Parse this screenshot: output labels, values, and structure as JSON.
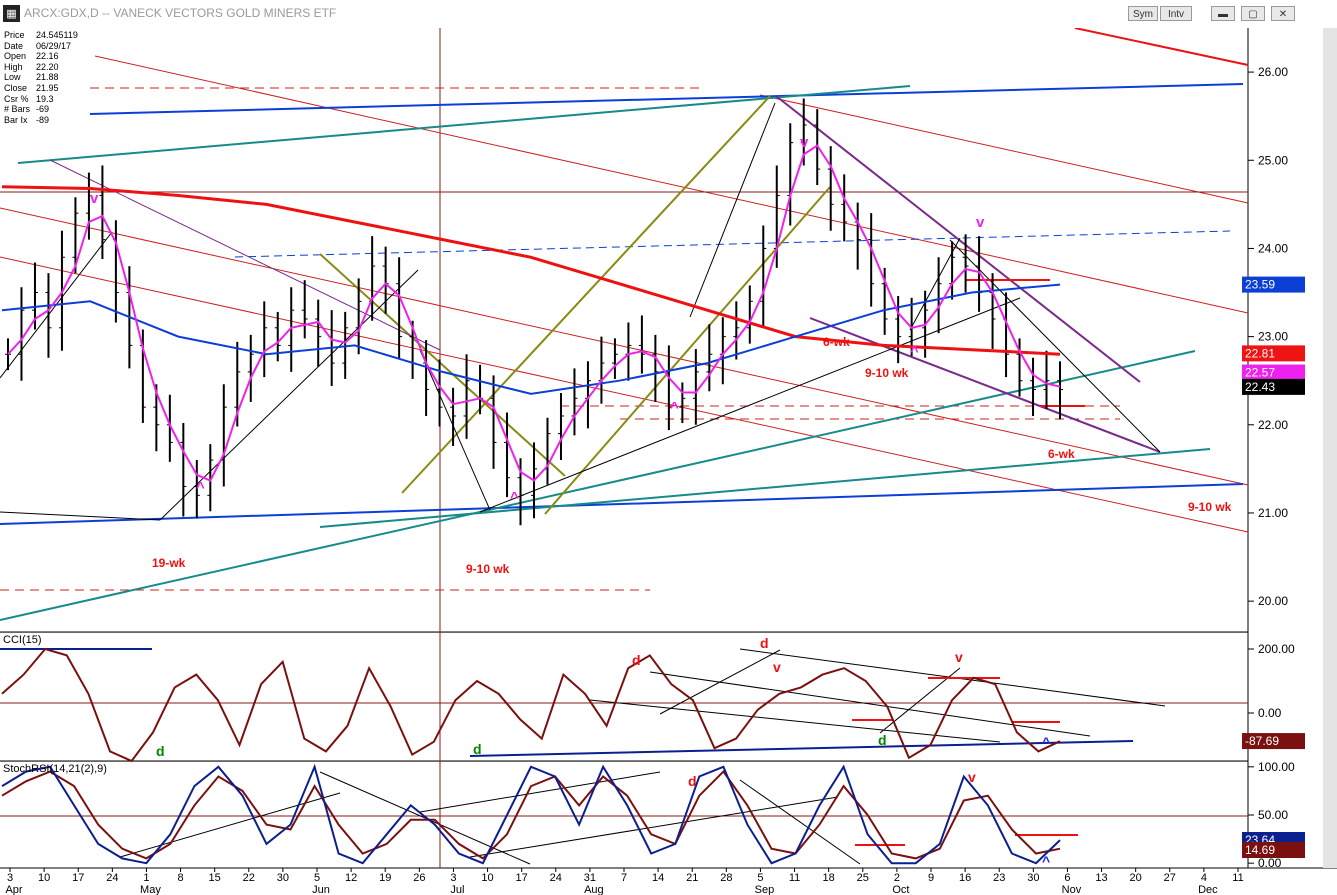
{
  "window": {
    "title": "ARCX:GDX,D -- VANECK VECTORS GOLD MINERS ETF",
    "sym_label": "Sym",
    "int_label": "Intv",
    "min_label": "▬",
    "max_label": "▢",
    "close_label": "✕",
    "app_icon": "grid-icon"
  },
  "info": {
    "price_label": "Price",
    "price": "24.545119",
    "date_label": "Date",
    "date": "06/29/17",
    "open_label": "Open",
    "open": "22.16",
    "high_label": "High",
    "high": "22.20",
    "low_label": "Low",
    "low": "21.88",
    "close_label": "Close",
    "close": "21.95",
    "csr_label": "Csr %",
    "csr": "19.3",
    "bars_label": "# Bars",
    "bars": "-69",
    "barix_label": "Bar Ix",
    "barix": "-89"
  },
  "panels": {
    "cci_title": "CCI(15)",
    "stoch_title": "StochRSI(14,21(2),9)"
  },
  "chart_data": [
    {
      "type": "line",
      "title": "ARCX:GDX,D -- VANECK VECTORS GOLD MINERS ETF",
      "panel": "price",
      "ylim": [
        19.65,
        26.5
      ],
      "yticks": [
        "26.00",
        "25.00",
        "24.00",
        "23.00",
        "22.00",
        "21.00",
        "20.00"
      ],
      "price_tags": [
        {
          "value": "23.59",
          "color": "#0b3fd6"
        },
        {
          "value": "22.81",
          "color": "#ef1313"
        },
        {
          "value": "22.57",
          "color": "#ee22ee"
        },
        {
          "value": "22.43",
          "color": "#000000"
        }
      ],
      "x_day_labels": [
        "3",
        "10",
        "17",
        "24",
        "1",
        "8",
        "15",
        "22",
        "30",
        "5",
        "12",
        "19",
        "26",
        "3",
        "10",
        "17",
        "24",
        "31",
        "7",
        "14",
        "21",
        "28",
        "5",
        "11",
        "18",
        "25",
        "2",
        "9",
        "16",
        "23",
        "30",
        "6",
        "13",
        "20",
        "27",
        "4",
        "11"
      ],
      "x_month_labels": [
        "Apr",
        "May",
        "Jun",
        "Jul",
        "Aug",
        "Sep",
        "Oct",
        "Nov",
        "Dec"
      ],
      "annotations": [
        {
          "text": "19-wk",
          "color": "#ee1111"
        },
        {
          "text": "9-10 wk",
          "color": "#ee1111"
        },
        {
          "text": "6-wk",
          "color": "#ee1111"
        },
        {
          "text": "9-10 wk",
          "color": "#ee1111"
        },
        {
          "text": "6-wk",
          "color": "#ee1111"
        },
        {
          "text": "9-10 wk",
          "color": "#ee1111"
        },
        {
          "text": "v",
          "color": "#ee22ee"
        },
        {
          "text": "v",
          "color": "#ee22ee"
        },
        {
          "text": "v",
          "color": "#ee22ee"
        },
        {
          "text": "^",
          "color": "#ee22ee"
        },
        {
          "text": "^",
          "color": "#ee22ee"
        },
        {
          "text": "^",
          "color": "#ee22ee"
        },
        {
          "text": "^",
          "color": "#ee22ee"
        }
      ],
      "series": [
        {
          "name": "price_close",
          "color": "#000000",
          "values": [
            22.8,
            23.3,
            23.5,
            23.1,
            23.9,
            24.4,
            24.6,
            24.1,
            23.5,
            22.9,
            22.2,
            22.0,
            21.8,
            21.3,
            21.2,
            21.6,
            22.2,
            22.6,
            22.8,
            23.1,
            22.9,
            23.3,
            23.2,
            23.0,
            22.7,
            23.1,
            23.4,
            23.8,
            23.6,
            23.0,
            22.7,
            22.4,
            22.2,
            22.1,
            22.5,
            22.3,
            21.8,
            21.4,
            21.2,
            21.5,
            21.9,
            22.1,
            22.3,
            22.5,
            22.7,
            22.8,
            22.9,
            22.8,
            22.6,
            22.2,
            22.3,
            22.6,
            22.8,
            23.0,
            23.1,
            23.4,
            24.0,
            24.6,
            25.2,
            25.4,
            24.9,
            24.5,
            24.3,
            24.1,
            23.6,
            23.2,
            23.0,
            23.1,
            23.3,
            23.6,
            23.9,
            23.8,
            23.5,
            23.2,
            22.8,
            22.5,
            22.4,
            22.5,
            22.4
          ]
        },
        {
          "name": "ma_red",
          "color": "#ee1111",
          "values": [
            24.7,
            24.68,
            24.6,
            24.5,
            24.3,
            24.1,
            23.9,
            23.6,
            23.3,
            23.0,
            22.9,
            22.85,
            22.8
          ]
        },
        {
          "name": "ma_blue",
          "color": "#0b3fd6",
          "values": [
            23.3,
            23.4,
            23.0,
            22.8,
            22.9,
            22.6,
            22.35,
            22.5,
            22.7,
            23.0,
            23.3,
            23.5,
            23.59
          ]
        }
      ]
    },
    {
      "type": "line",
      "title": "CCI(15)",
      "panel": "cci",
      "ylim": [
        -150,
        250
      ],
      "yticks": [
        "200.00",
        "0.00"
      ],
      "price_tags": [
        {
          "value": "-87.69",
          "color": "#7a1010"
        }
      ],
      "annotations": [
        {
          "text": "d",
          "color": "#008800"
        },
        {
          "text": "d",
          "color": "#008800"
        },
        {
          "text": "d",
          "color": "#ee1111"
        },
        {
          "text": "d",
          "color": "#ee1111"
        },
        {
          "text": "v",
          "color": "#ee1111"
        },
        {
          "text": "d",
          "color": "#008800"
        },
        {
          "text": "v",
          "color": "#ee1111"
        },
        {
          "text": "^",
          "color": "#2222ee"
        }
      ],
      "series": [
        {
          "name": "cci",
          "color": "#7a1010",
          "values": [
            60,
            120,
            200,
            180,
            60,
            -120,
            -150,
            -60,
            80,
            120,
            40,
            -100,
            90,
            160,
            -80,
            -120,
            -40,
            140,
            20,
            -130,
            -90,
            40,
            100,
            60,
            -20,
            -80,
            120,
            60,
            -40,
            140,
            180,
            90,
            40,
            -110,
            -80,
            10,
            60,
            80,
            120,
            140,
            100,
            20,
            -140,
            -100,
            40,
            110,
            90,
            -60,
            -120,
            -88
          ]
        }
      ]
    },
    {
      "type": "line",
      "title": "StochRSI(14,21(2),9)",
      "panel": "stochrsi",
      "ylim": [
        -5,
        105
      ],
      "yticks": [
        "100.00",
        "50.00",
        "0.00"
      ],
      "price_tags": [
        {
          "value": "23.64",
          "color": "#0b1f8f"
        },
        {
          "value": "14.69",
          "color": "#7a1010"
        }
      ],
      "annotations": [
        {
          "text": "d",
          "color": "#ee1111"
        },
        {
          "text": "v",
          "color": "#ee1111"
        },
        {
          "text": "^",
          "color": "#2222ee"
        }
      ],
      "series": [
        {
          "name": "stochrsi_fast",
          "color": "#0b1f8f",
          "values": [
            80,
            95,
            100,
            60,
            20,
            5,
            0,
            30,
            80,
            100,
            70,
            20,
            40,
            100,
            10,
            0,
            30,
            60,
            40,
            10,
            0,
            50,
            100,
            90,
            40,
            100,
            60,
            10,
            20,
            90,
            100,
            40,
            0,
            10,
            60,
            100,
            30,
            0,
            0,
            20,
            90,
            60,
            10,
            0,
            24
          ]
        },
        {
          "name": "stochrsi_slow",
          "color": "#7a1010",
          "values": [
            70,
            85,
            95,
            80,
            40,
            15,
            5,
            20,
            60,
            90,
            75,
            40,
            35,
            80,
            40,
            10,
            20,
            45,
            45,
            20,
            5,
            30,
            80,
            90,
            60,
            90,
            70,
            30,
            20,
            70,
            95,
            60,
            15,
            10,
            40,
            80,
            50,
            10,
            5,
            15,
            65,
            70,
            35,
            10,
            15
          ]
        }
      ]
    }
  ]
}
